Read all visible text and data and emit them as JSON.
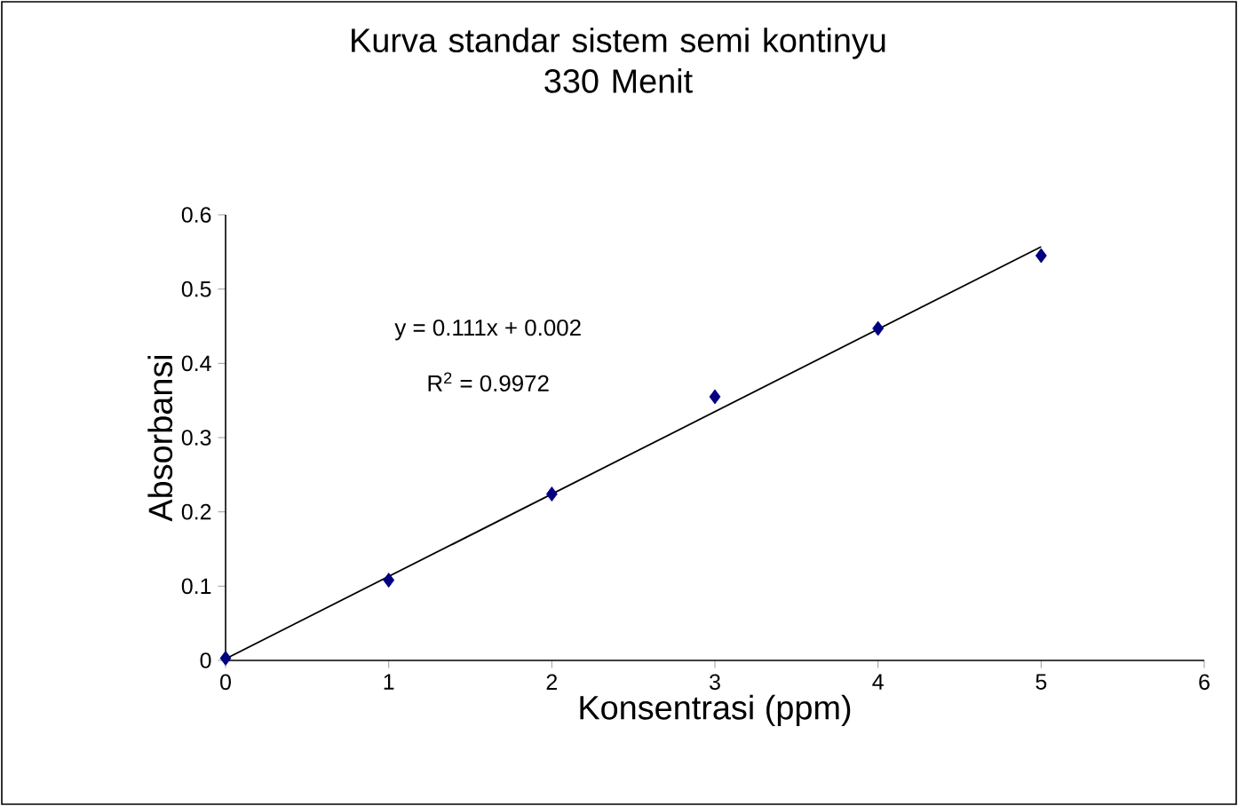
{
  "chart_data": {
    "type": "scatter",
    "title": "Kurva standar sistem semi kontinyu\n330 Menit",
    "xlabel": "Konsentrasi (ppm)",
    "ylabel": "Absorbansi",
    "x": [
      0,
      1,
      2,
      3,
      4,
      5
    ],
    "series": [
      {
        "color": "#000080",
        "marker": "diamond",
        "values": [
          0.003,
          0.108,
          0.224,
          0.355,
          0.447,
          0.545
        ]
      },
      {
        "type": "line",
        "color": "#000000",
        "marker": "none",
        "line_style": "solid",
        "x": [
          0,
          5
        ],
        "values": [
          0.002,
          0.557
        ]
      }
    ],
    "annotations": [
      "y = 0.111x + 0.002",
      "R$^{2}$ = 0.9972"
    ],
    "xlim": [
      0,
      6
    ],
    "ylim": [
      0,
      0.6
    ],
    "xticks": [
      0,
      1,
      2,
      3,
      4,
      5,
      6
    ],
    "yticks": [
      0,
      0.1,
      0.2,
      0.3,
      0.4,
      0.5,
      0.6
    ],
    "grid": false
  }
}
